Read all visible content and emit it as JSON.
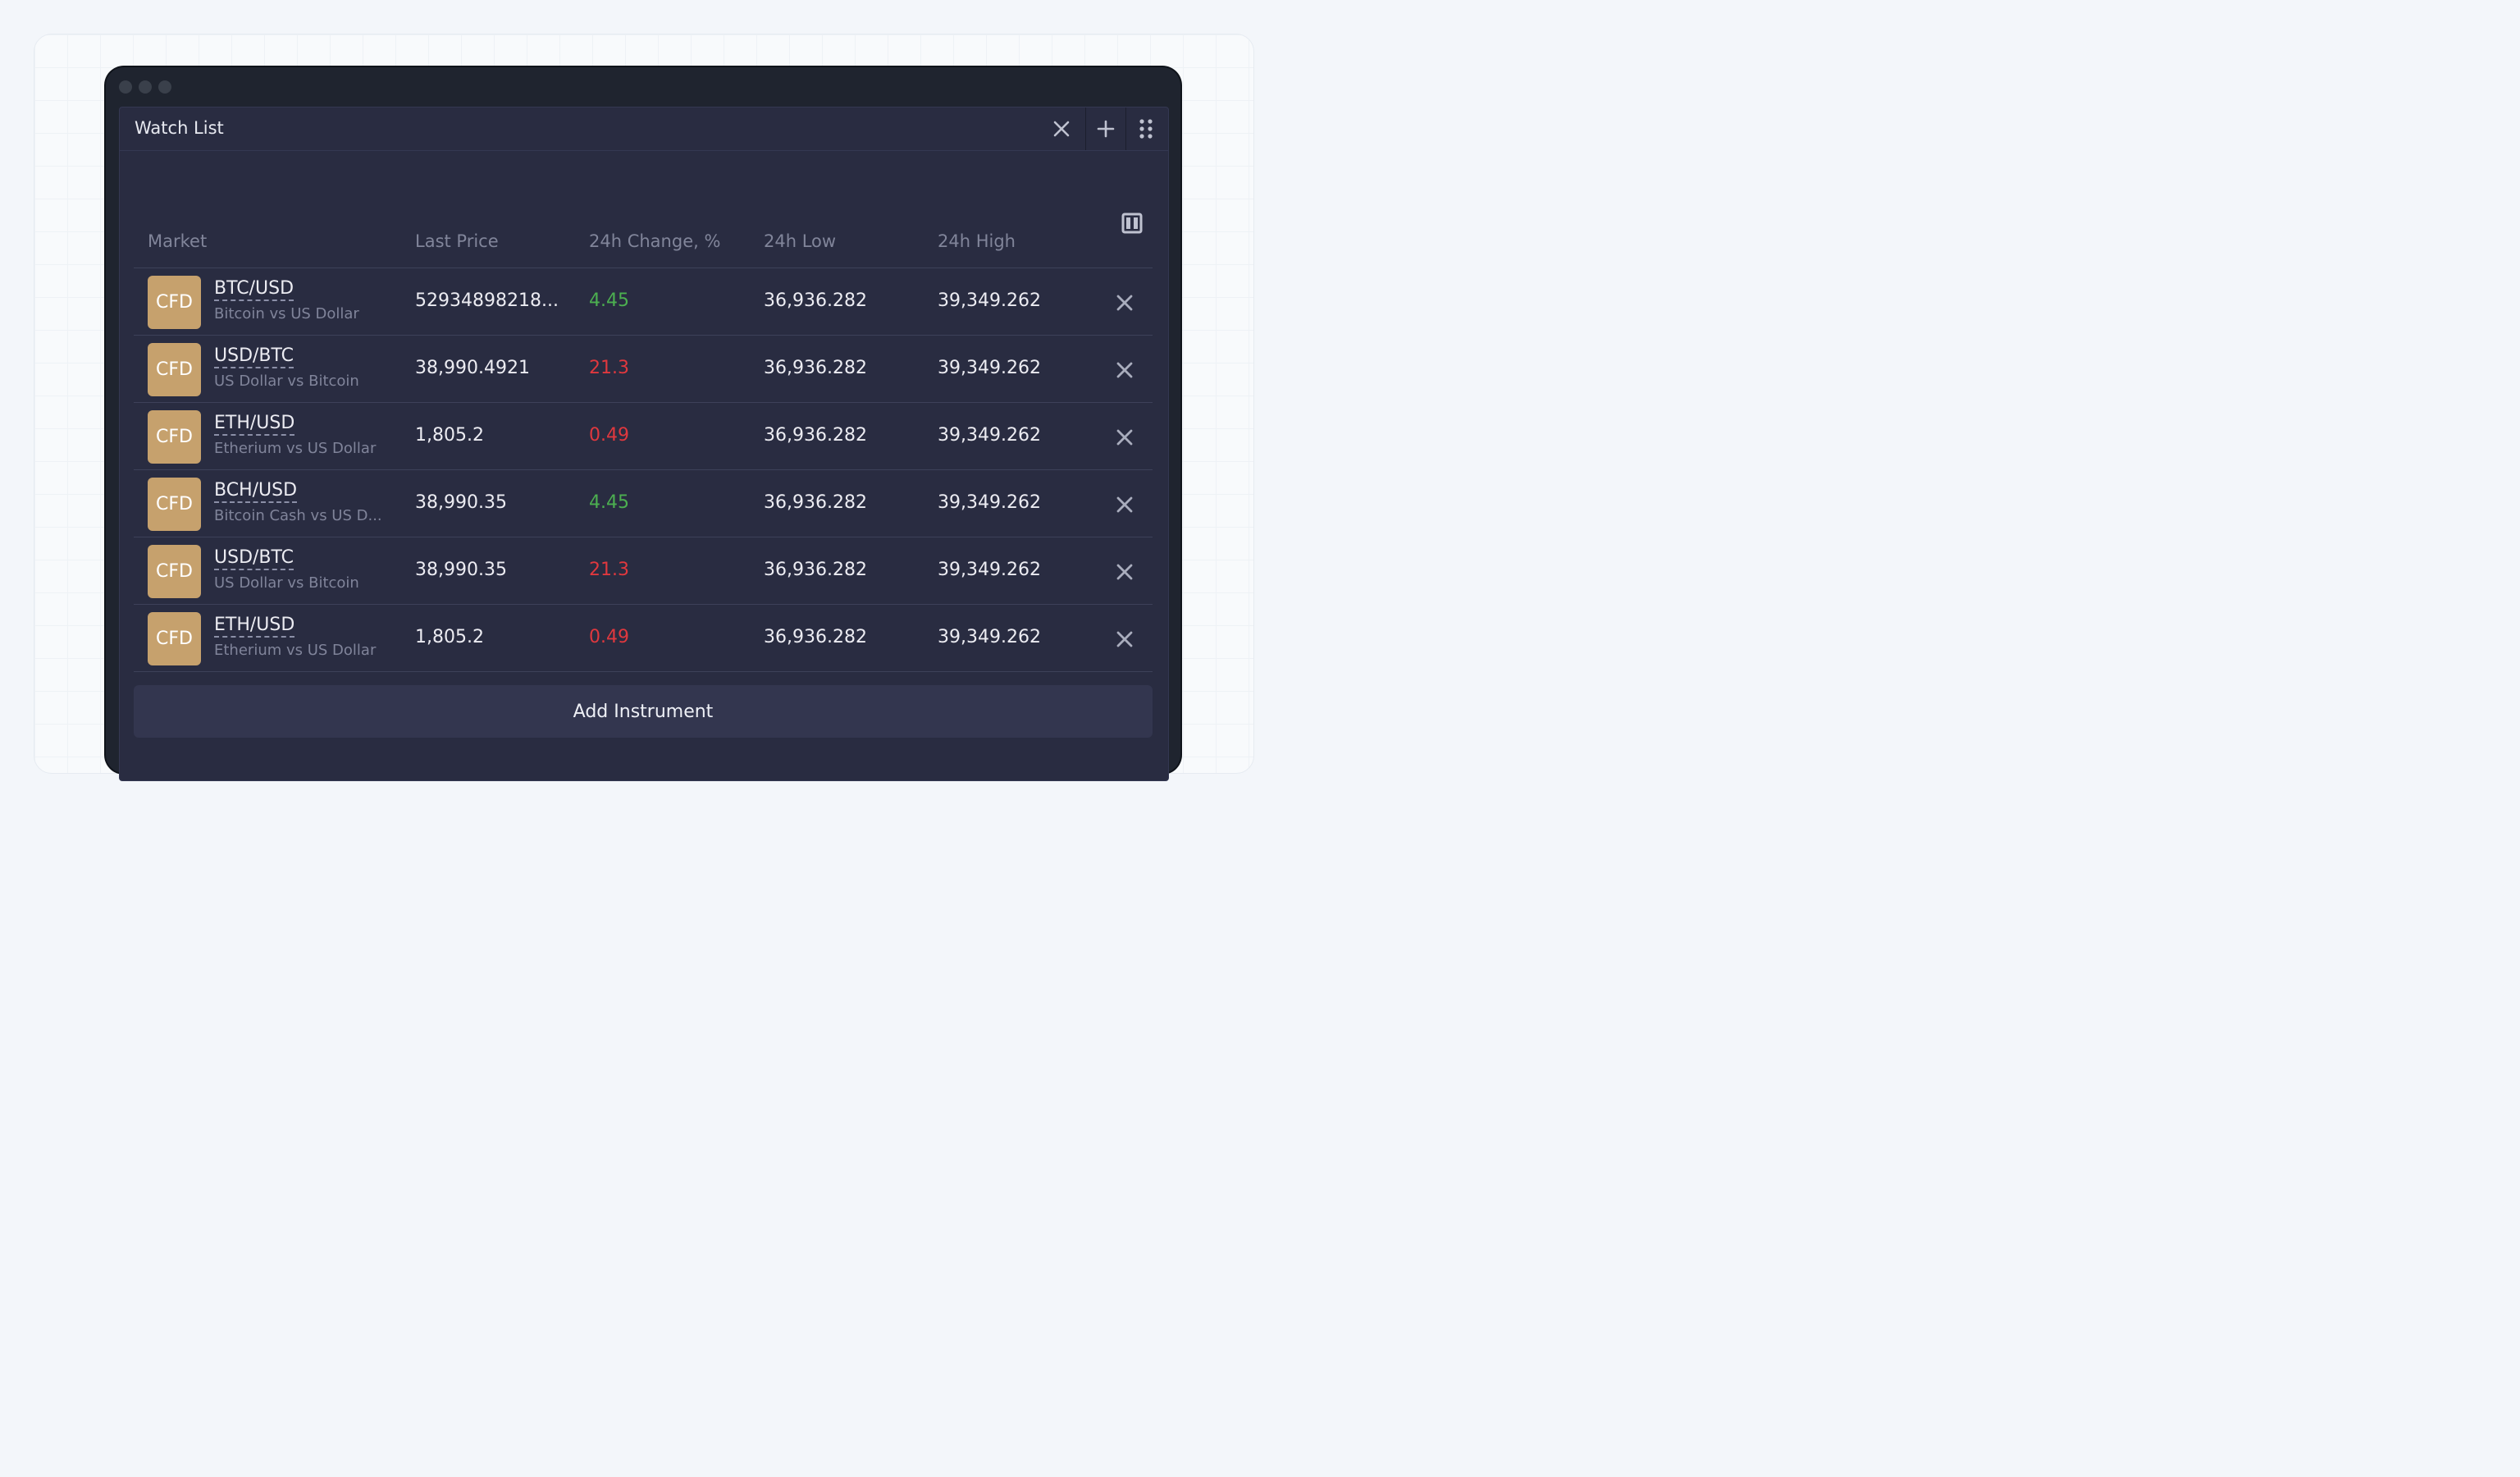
{
  "panel": {
    "title": "Watch List"
  },
  "colors": {
    "positive": "#4caf50",
    "negative": "#e0383e",
    "cfd_badge": "#c6a16d"
  },
  "header_buttons": {
    "close_icon": "close-icon",
    "add_icon": "plus-icon",
    "drag_icon": "drag-handle-icon",
    "columns_icon": "columns-icon"
  },
  "table": {
    "columns": [
      "Market",
      "Last Price",
      "24h Change, %",
      "24h Low",
      "24h High"
    ],
    "rows": [
      {
        "badge": "CFD",
        "symbol": "BTC/USD",
        "description": "Bitcoin vs US Dollar",
        "last_price": "52934898218...",
        "change": "4.45",
        "change_dir": "up",
        "low": "36,936.282",
        "high": "39,349.262"
      },
      {
        "badge": "CFD",
        "symbol": "USD/BTC",
        "description": "US Dollar vs Bitcoin",
        "last_price": "38,990.4921",
        "change": "21.3",
        "change_dir": "down",
        "low": "36,936.282",
        "high": "39,349.262"
      },
      {
        "badge": "CFD",
        "symbol": "ETH/USD",
        "description": "Etherium vs US Dollar",
        "last_price": "1,805.2",
        "change": "0.49",
        "change_dir": "down",
        "low": "36,936.282",
        "high": "39,349.262"
      },
      {
        "badge": "CFD",
        "symbol": "BCH/USD",
        "description": "Bitcoin Cash vs US D...",
        "last_price": "38,990.35",
        "change": "4.45",
        "change_dir": "up",
        "low": "36,936.282",
        "high": "39,349.262"
      },
      {
        "badge": "CFD",
        "symbol": "USD/BTC",
        "description": "US Dollar vs Bitcoin",
        "last_price": "38,990.35",
        "change": "21.3",
        "change_dir": "down",
        "low": "36,936.282",
        "high": "39,349.262"
      },
      {
        "badge": "CFD",
        "symbol": "ETH/USD",
        "description": "Etherium vs US Dollar",
        "last_price": "1,805.2",
        "change": "0.49",
        "change_dir": "down",
        "low": "36,936.282",
        "high": "39,349.262"
      }
    ]
  },
  "footer": {
    "add_label": "Add Instrument"
  }
}
